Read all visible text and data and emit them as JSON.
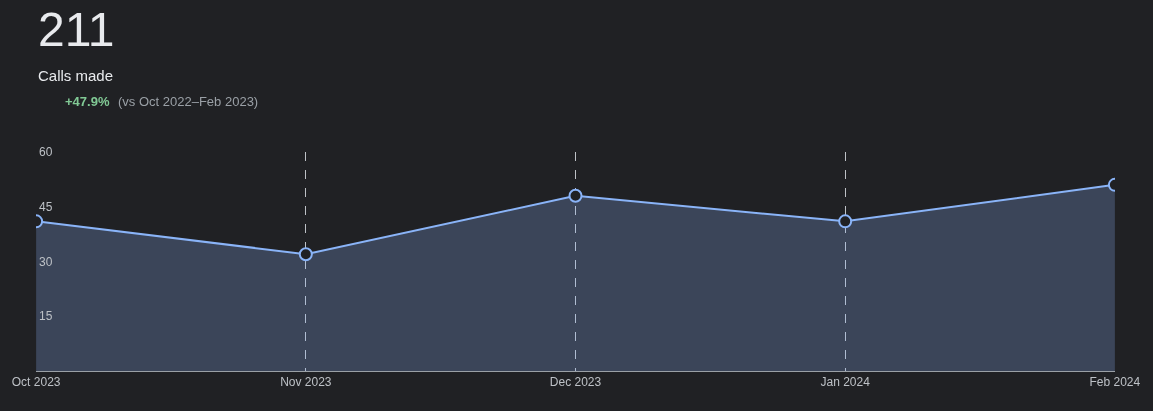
{
  "chart_data": {
    "type": "area",
    "title": "211",
    "subtitle": "Calls made",
    "annotations": [
      "+47.9%",
      "(vs Oct 2022–Feb 2023)"
    ],
    "categories": [
      "Oct 2023",
      "Nov 2023",
      "Dec 2023",
      "Jan 2024",
      "Feb 2024"
    ],
    "series": [
      {
        "color": "#8ab4f8",
        "values": [
          41,
          32,
          48,
          41,
          51
        ]
      }
    ],
    "ylim": [
      0,
      60
    ],
    "yticks": [
      15,
      30,
      45,
      60
    ],
    "grid": "x",
    "legend": false,
    "marker": "circle",
    "line_style": "solid"
  }
}
